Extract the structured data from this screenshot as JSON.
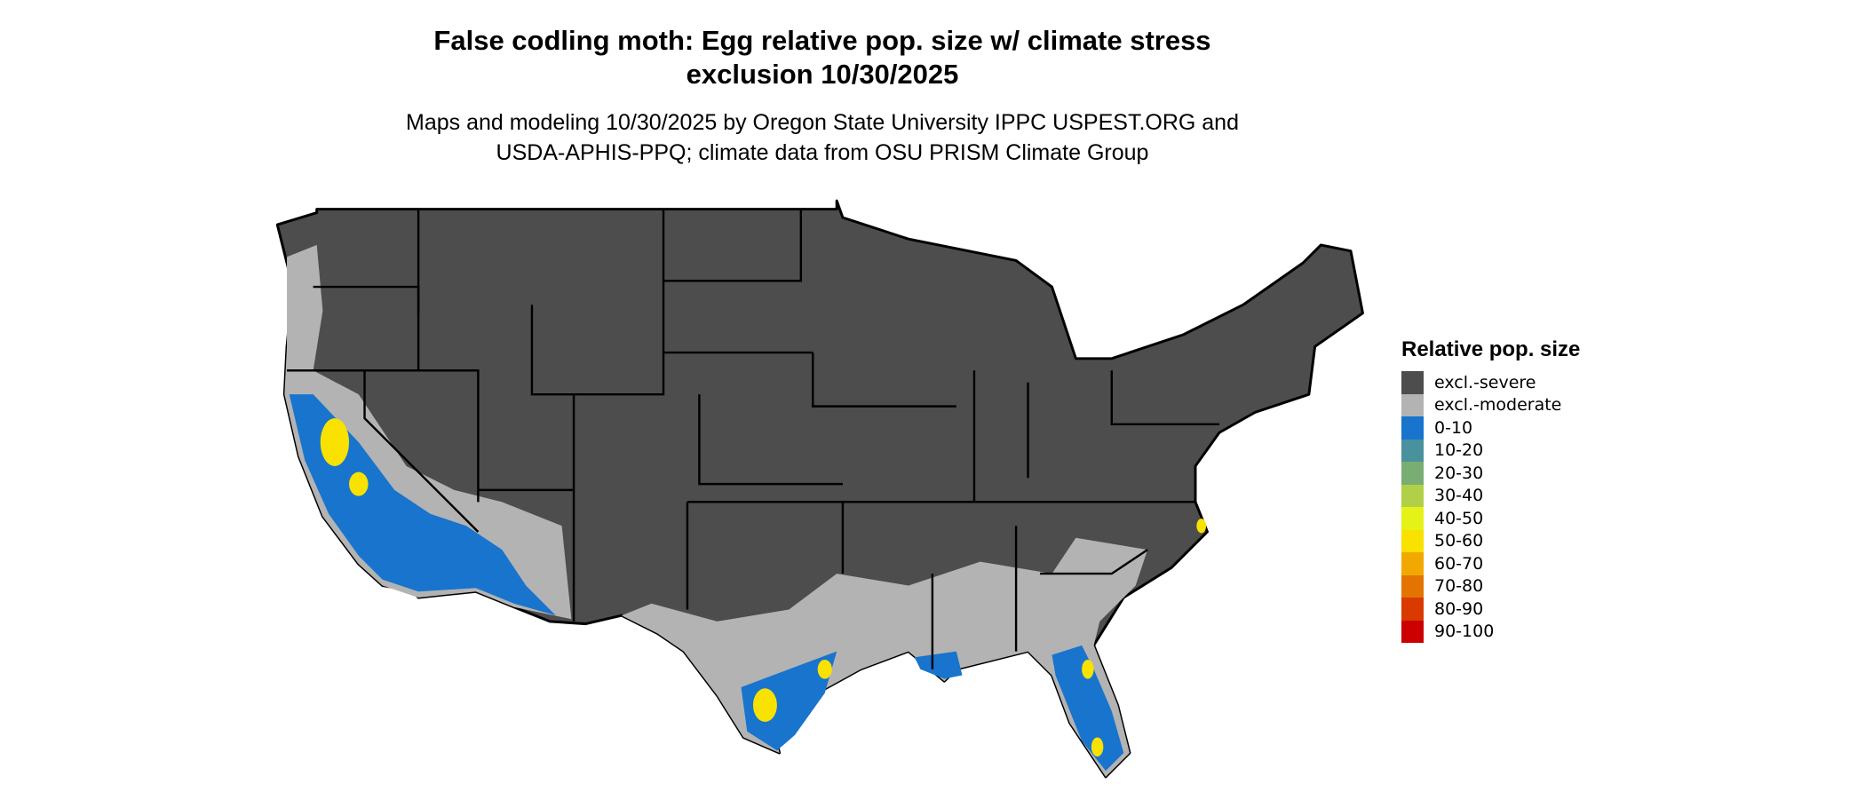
{
  "title_lines": [
    "False codling moth: Egg relative pop. size w/ climate stress",
    "exclusion 10/30/2025"
  ],
  "subtitle_lines": [
    "Maps and modeling 10/30/2025 by Oregon State University IPPC USPEST.ORG and",
    "USDA-APHIS-PPQ; climate data from OSU PRISM Climate Group"
  ],
  "legend": {
    "title": "Relative pop. size",
    "items": [
      {
        "label": "excl.-severe",
        "color": "#4d4d4d"
      },
      {
        "label": "excl.-moderate",
        "color": "#b3b3b3"
      },
      {
        "label": "0-10",
        "color": "#1874cd"
      },
      {
        "label": "10-20",
        "color": "#4a919e"
      },
      {
        "label": "20-30",
        "color": "#7aad74"
      },
      {
        "label": "30-40",
        "color": "#b2d047"
      },
      {
        "label": "40-50",
        "color": "#e5f217"
      },
      {
        "label": "50-60",
        "color": "#f9e100"
      },
      {
        "label": "60-70",
        "color": "#f1a800"
      },
      {
        "label": "70-80",
        "color": "#e37400"
      },
      {
        "label": "80-90",
        "color": "#d83a00"
      },
      {
        "label": "90-100",
        "color": "#cc0000"
      }
    ]
  }
}
